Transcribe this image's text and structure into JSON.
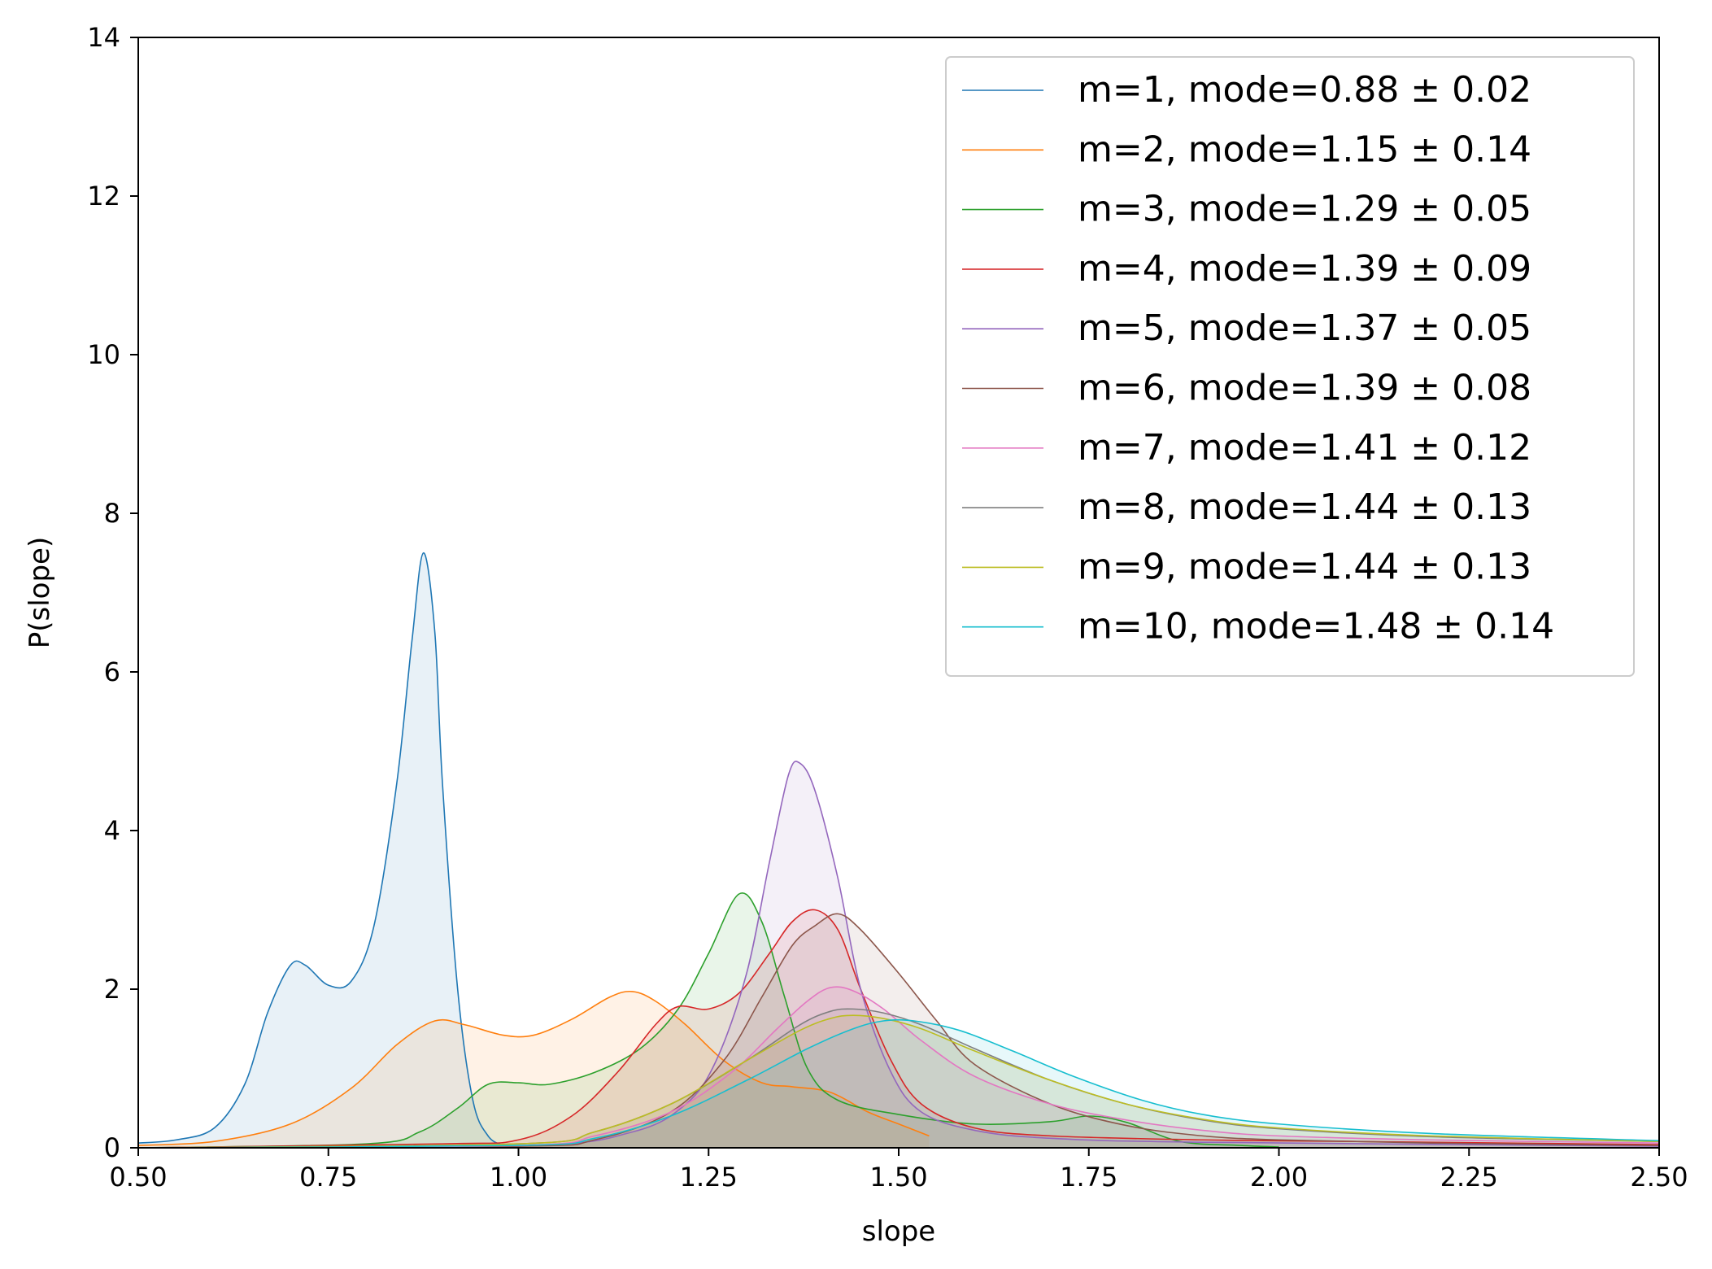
{
  "chart_data": {
    "type": "area",
    "title": "",
    "xlabel": "slope",
    "ylabel": "P(slope)",
    "xlim": [
      0.5,
      2.5
    ],
    "ylim": [
      0,
      14
    ],
    "x_ticks": [
      0.5,
      0.75,
      1.0,
      1.25,
      1.5,
      1.75,
      2.0,
      2.25,
      2.5
    ],
    "x_tick_labels": [
      "0.50",
      "0.75",
      "1.00",
      "1.25",
      "1.50",
      "1.75",
      "2.00",
      "2.25",
      "2.50"
    ],
    "y_ticks": [
      0,
      2,
      4,
      6,
      8,
      10,
      12,
      14
    ],
    "y_tick_labels": [
      "0",
      "2",
      "4",
      "6",
      "8",
      "10",
      "12",
      "14"
    ],
    "grid": false,
    "legend_position": "top-right",
    "series": [
      {
        "name": "m=1, mode=0.88 ± 0.02",
        "color": "#1f77b4",
        "points": [
          [
            0.5,
            0.06
          ],
          [
            0.55,
            0.1
          ],
          [
            0.6,
            0.25
          ],
          [
            0.64,
            0.8
          ],
          [
            0.67,
            1.7
          ],
          [
            0.7,
            2.3
          ],
          [
            0.72,
            2.3
          ],
          [
            0.75,
            2.05
          ],
          [
            0.78,
            2.1
          ],
          [
            0.81,
            2.8
          ],
          [
            0.84,
            4.6
          ],
          [
            0.86,
            6.4
          ],
          [
            0.875,
            7.5
          ],
          [
            0.89,
            6.5
          ],
          [
            0.9,
            4.6
          ],
          [
            0.92,
            2.0
          ],
          [
            0.94,
            0.6
          ],
          [
            0.96,
            0.15
          ],
          [
            0.98,
            0.03
          ]
        ]
      },
      {
        "name": "m=2, mode=1.15 ± 0.14",
        "color": "#ff7f0e",
        "points": [
          [
            0.5,
            0.03
          ],
          [
            0.6,
            0.08
          ],
          [
            0.7,
            0.3
          ],
          [
            0.78,
            0.75
          ],
          [
            0.84,
            1.3
          ],
          [
            0.89,
            1.6
          ],
          [
            0.93,
            1.55
          ],
          [
            0.98,
            1.42
          ],
          [
            1.02,
            1.42
          ],
          [
            1.07,
            1.62
          ],
          [
            1.12,
            1.9
          ],
          [
            1.15,
            1.97
          ],
          [
            1.18,
            1.85
          ],
          [
            1.22,
            1.55
          ],
          [
            1.27,
            1.1
          ],
          [
            1.32,
            0.82
          ],
          [
            1.36,
            0.77
          ],
          [
            1.41,
            0.7
          ],
          [
            1.46,
            0.45
          ],
          [
            1.5,
            0.3
          ],
          [
            1.54,
            0.15
          ]
        ]
      },
      {
        "name": "m=3, mode=1.29 ± 0.05",
        "color": "#2ca02c",
        "points": [
          [
            0.5,
            0.0
          ],
          [
            0.8,
            0.05
          ],
          [
            0.87,
            0.2
          ],
          [
            0.92,
            0.5
          ],
          [
            0.96,
            0.8
          ],
          [
            1.0,
            0.82
          ],
          [
            1.04,
            0.8
          ],
          [
            1.1,
            0.95
          ],
          [
            1.16,
            1.25
          ],
          [
            1.21,
            1.75
          ],
          [
            1.25,
            2.45
          ],
          [
            1.29,
            3.2
          ],
          [
            1.32,
            2.85
          ],
          [
            1.35,
            1.9
          ],
          [
            1.38,
            1.0
          ],
          [
            1.42,
            0.6
          ],
          [
            1.5,
            0.42
          ],
          [
            1.6,
            0.3
          ],
          [
            1.7,
            0.33
          ],
          [
            1.75,
            0.4
          ],
          [
            1.8,
            0.32
          ],
          [
            1.87,
            0.08
          ],
          [
            1.95,
            0.03
          ],
          [
            2.0,
            0.01
          ]
        ]
      },
      {
        "name": "m=4, mode=1.39 ± 0.09",
        "color": "#d62728",
        "points": [
          [
            0.5,
            0.0
          ],
          [
            0.9,
            0.05
          ],
          [
            1.0,
            0.1
          ],
          [
            1.07,
            0.4
          ],
          [
            1.13,
            0.95
          ],
          [
            1.18,
            1.55
          ],
          [
            1.21,
            1.78
          ],
          [
            1.25,
            1.75
          ],
          [
            1.29,
            1.95
          ],
          [
            1.33,
            2.45
          ],
          [
            1.36,
            2.85
          ],
          [
            1.39,
            3.0
          ],
          [
            1.42,
            2.75
          ],
          [
            1.45,
            2.0
          ],
          [
            1.49,
            1.1
          ],
          [
            1.53,
            0.55
          ],
          [
            1.6,
            0.25
          ],
          [
            1.7,
            0.15
          ],
          [
            1.9,
            0.1
          ],
          [
            2.1,
            0.08
          ],
          [
            2.5,
            0.04
          ]
        ]
      },
      {
        "name": "m=5, mode=1.37 ± 0.05",
        "color": "#9467bd",
        "points": [
          [
            0.5,
            0.0
          ],
          [
            1.0,
            0.02
          ],
          [
            1.15,
            0.2
          ],
          [
            1.22,
            0.55
          ],
          [
            1.26,
            1.1
          ],
          [
            1.3,
            2.2
          ],
          [
            1.33,
            3.6
          ],
          [
            1.355,
            4.7
          ],
          [
            1.37,
            4.85
          ],
          [
            1.39,
            4.5
          ],
          [
            1.42,
            3.4
          ],
          [
            1.45,
            2.0
          ],
          [
            1.49,
            0.95
          ],
          [
            1.53,
            0.45
          ],
          [
            1.6,
            0.22
          ],
          [
            1.7,
            0.12
          ],
          [
            1.9,
            0.07
          ],
          [
            2.5,
            0.02
          ]
        ]
      },
      {
        "name": "m=6, mode=1.39 ± 0.08",
        "color": "#8c564b",
        "points": [
          [
            0.5,
            0.0
          ],
          [
            1.0,
            0.02
          ],
          [
            1.1,
            0.1
          ],
          [
            1.2,
            0.45
          ],
          [
            1.27,
            1.1
          ],
          [
            1.32,
            1.9
          ],
          [
            1.36,
            2.55
          ],
          [
            1.39,
            2.8
          ],
          [
            1.42,
            2.95
          ],
          [
            1.45,
            2.75
          ],
          [
            1.5,
            2.2
          ],
          [
            1.55,
            1.6
          ],
          [
            1.6,
            1.05
          ],
          [
            1.7,
            0.55
          ],
          [
            1.8,
            0.28
          ],
          [
            1.9,
            0.15
          ],
          [
            2.0,
            0.1
          ],
          [
            2.2,
            0.06
          ],
          [
            2.5,
            0.03
          ]
        ]
      },
      {
        "name": "m=7, mode=1.41 ± 0.12",
        "color": "#e377c2",
        "points": [
          [
            0.5,
            0.0
          ],
          [
            1.0,
            0.03
          ],
          [
            1.1,
            0.15
          ],
          [
            1.2,
            0.45
          ],
          [
            1.28,
            0.95
          ],
          [
            1.34,
            1.5
          ],
          [
            1.38,
            1.85
          ],
          [
            1.41,
            2.02
          ],
          [
            1.44,
            1.98
          ],
          [
            1.48,
            1.75
          ],
          [
            1.53,
            1.35
          ],
          [
            1.6,
            0.9
          ],
          [
            1.7,
            0.55
          ],
          [
            1.8,
            0.35
          ],
          [
            1.9,
            0.22
          ],
          [
            2.0,
            0.15
          ],
          [
            2.2,
            0.1
          ],
          [
            2.5,
            0.06
          ]
        ]
      },
      {
        "name": "m=8, mode=1.44 ± 0.13",
        "color": "#7f7f7f",
        "points": [
          [
            0.5,
            0.0
          ],
          [
            1.0,
            0.05
          ],
          [
            1.1,
            0.2
          ],
          [
            1.2,
            0.55
          ],
          [
            1.3,
            1.1
          ],
          [
            1.37,
            1.55
          ],
          [
            1.41,
            1.72
          ],
          [
            1.44,
            1.75
          ],
          [
            1.48,
            1.7
          ],
          [
            1.53,
            1.55
          ],
          [
            1.6,
            1.25
          ],
          [
            1.7,
            0.85
          ],
          [
            1.8,
            0.55
          ],
          [
            1.9,
            0.35
          ],
          [
            2.0,
            0.24
          ],
          [
            2.2,
            0.14
          ],
          [
            2.5,
            0.08
          ]
        ]
      },
      {
        "name": "m=9, mode=1.44 ± 0.13",
        "color": "#bcbd22",
        "points": [
          [
            0.5,
            0.0
          ],
          [
            1.0,
            0.05
          ],
          [
            1.1,
            0.2
          ],
          [
            1.2,
            0.55
          ],
          [
            1.3,
            1.1
          ],
          [
            1.37,
            1.48
          ],
          [
            1.41,
            1.63
          ],
          [
            1.44,
            1.67
          ],
          [
            1.48,
            1.63
          ],
          [
            1.53,
            1.5
          ],
          [
            1.6,
            1.22
          ],
          [
            1.7,
            0.85
          ],
          [
            1.8,
            0.55
          ],
          [
            1.9,
            0.36
          ],
          [
            2.0,
            0.25
          ],
          [
            2.2,
            0.15
          ],
          [
            2.5,
            0.08
          ]
        ]
      },
      {
        "name": "m=10, mode=1.48 ± 0.14",
        "color": "#17becf",
        "points": [
          [
            0.5,
            0.0
          ],
          [
            1.0,
            0.03
          ],
          [
            1.1,
            0.12
          ],
          [
            1.2,
            0.4
          ],
          [
            1.3,
            0.85
          ],
          [
            1.38,
            1.25
          ],
          [
            1.44,
            1.5
          ],
          [
            1.48,
            1.6
          ],
          [
            1.52,
            1.6
          ],
          [
            1.58,
            1.48
          ],
          [
            1.65,
            1.22
          ],
          [
            1.73,
            0.9
          ],
          [
            1.82,
            0.6
          ],
          [
            1.9,
            0.42
          ],
          [
            2.0,
            0.3
          ],
          [
            2.2,
            0.18
          ],
          [
            2.5,
            0.09
          ]
        ]
      }
    ]
  }
}
